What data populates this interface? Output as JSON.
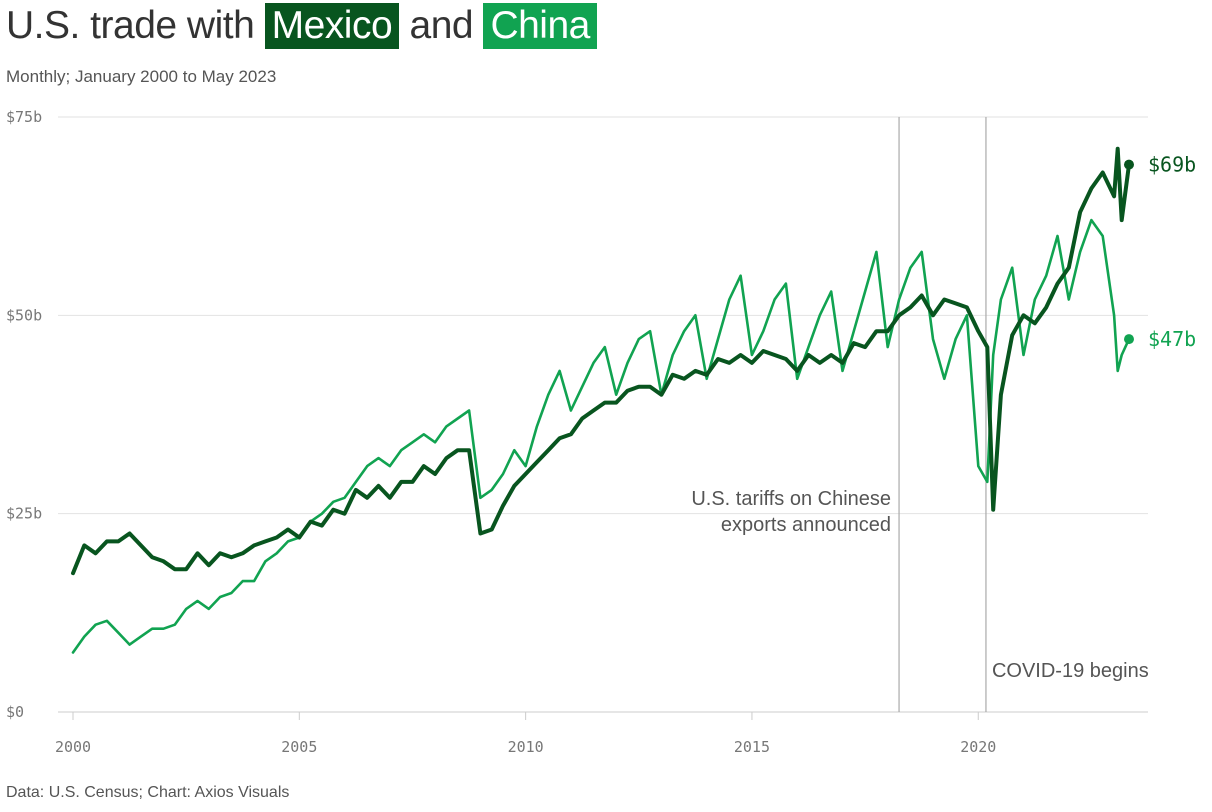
{
  "header": {
    "title_prefix": "U.S. trade with",
    "title_mexico": "Mexico",
    "title_and": "and",
    "title_china": "China",
    "subtitle": "Monthly; January 2000 to May 2023"
  },
  "footer": {
    "source": "Data: U.S. Census; Chart: Axios Visuals"
  },
  "colors": {
    "mexico": "#08551f",
    "china": "#11a351",
    "grid": "#e2e2e2",
    "marker": "#aaaaaa"
  },
  "chart_data": {
    "type": "line",
    "title": "U.S. trade with Mexico and China",
    "subtitle": "Monthly; January 2000 to May 2023",
    "xlabel": "",
    "ylabel": "",
    "xlim": [
      2000,
      2023.75
    ],
    "ylim": [
      0,
      75
    ],
    "x_ticks": [
      2000,
      2005,
      2010,
      2015,
      2020
    ],
    "x_tick_labels": [
      "2000",
      "2005",
      "2010",
      "2015",
      "2020"
    ],
    "y_ticks": [
      0,
      25,
      50,
      75
    ],
    "y_tick_labels": [
      "$0",
      "$25b",
      "$50b",
      "$75b"
    ],
    "grid": true,
    "series": [
      {
        "name": "Mexico",
        "end_label": "$69b",
        "points": [
          [
            2000.0,
            17.5
          ],
          [
            2000.25,
            21
          ],
          [
            2000.5,
            20
          ],
          [
            2000.75,
            21.5
          ],
          [
            2001.0,
            21.5
          ],
          [
            2001.25,
            22.5
          ],
          [
            2001.5,
            21
          ],
          [
            2001.75,
            19.5
          ],
          [
            2002.0,
            19
          ],
          [
            2002.25,
            18
          ],
          [
            2002.5,
            18
          ],
          [
            2002.75,
            20
          ],
          [
            2003.0,
            18.5
          ],
          [
            2003.25,
            20
          ],
          [
            2003.5,
            19.5
          ],
          [
            2003.75,
            20
          ],
          [
            2004.0,
            21
          ],
          [
            2004.25,
            21.5
          ],
          [
            2004.5,
            22
          ],
          [
            2004.75,
            23
          ],
          [
            2005.0,
            22
          ],
          [
            2005.25,
            24
          ],
          [
            2005.5,
            23.5
          ],
          [
            2005.75,
            25.5
          ],
          [
            2006.0,
            25
          ],
          [
            2006.25,
            28
          ],
          [
            2006.5,
            27
          ],
          [
            2006.75,
            28.5
          ],
          [
            2007.0,
            27
          ],
          [
            2007.25,
            29
          ],
          [
            2007.5,
            29
          ],
          [
            2007.75,
            31
          ],
          [
            2008.0,
            30
          ],
          [
            2008.25,
            32
          ],
          [
            2008.5,
            33
          ],
          [
            2008.75,
            33
          ],
          [
            2009.0,
            22.5
          ],
          [
            2009.25,
            23
          ],
          [
            2009.5,
            26
          ],
          [
            2009.75,
            28.5
          ],
          [
            2010.0,
            30
          ],
          [
            2010.25,
            31.5
          ],
          [
            2010.5,
            33
          ],
          [
            2010.75,
            34.5
          ],
          [
            2011.0,
            35
          ],
          [
            2011.25,
            37
          ],
          [
            2011.5,
            38
          ],
          [
            2011.75,
            39
          ],
          [
            2012.0,
            39
          ],
          [
            2012.25,
            40.5
          ],
          [
            2012.5,
            41
          ],
          [
            2012.75,
            41
          ],
          [
            2013.0,
            40
          ],
          [
            2013.25,
            42.5
          ],
          [
            2013.5,
            42
          ],
          [
            2013.75,
            43
          ],
          [
            2014.0,
            42.5
          ],
          [
            2014.25,
            44.5
          ],
          [
            2014.5,
            44
          ],
          [
            2014.75,
            45
          ],
          [
            2015.0,
            44
          ],
          [
            2015.25,
            45.5
          ],
          [
            2015.5,
            45
          ],
          [
            2015.75,
            44.5
          ],
          [
            2016.0,
            43
          ],
          [
            2016.25,
            45
          ],
          [
            2016.5,
            44
          ],
          [
            2016.75,
            45
          ],
          [
            2017.0,
            44
          ],
          [
            2017.25,
            46.5
          ],
          [
            2017.5,
            46
          ],
          [
            2017.75,
            48
          ],
          [
            2018.0,
            48
          ],
          [
            2018.25,
            50
          ],
          [
            2018.5,
            51
          ],
          [
            2018.75,
            52.5
          ],
          [
            2019.0,
            50
          ],
          [
            2019.25,
            52
          ],
          [
            2019.5,
            51.5
          ],
          [
            2019.75,
            51
          ],
          [
            2020.0,
            48
          ],
          [
            2020.2,
            46
          ],
          [
            2020.33,
            25.5
          ],
          [
            2020.5,
            40
          ],
          [
            2020.75,
            47.5
          ],
          [
            2021.0,
            50
          ],
          [
            2021.25,
            49
          ],
          [
            2021.5,
            51
          ],
          [
            2021.75,
            54
          ],
          [
            2022.0,
            56
          ],
          [
            2022.25,
            63
          ],
          [
            2022.5,
            66
          ],
          [
            2022.75,
            68
          ],
          [
            2023.0,
            65
          ],
          [
            2023.08,
            71
          ],
          [
            2023.17,
            62
          ],
          [
            2023.33,
            69
          ]
        ]
      },
      {
        "name": "China",
        "end_label": "$47b",
        "points": [
          [
            2000.0,
            7.5
          ],
          [
            2000.25,
            9.5
          ],
          [
            2000.5,
            11
          ],
          [
            2000.75,
            11.5
          ],
          [
            2001.0,
            10
          ],
          [
            2001.25,
            8.5
          ],
          [
            2001.5,
            9.5
          ],
          [
            2001.75,
            10.5
          ],
          [
            2002.0,
            10.5
          ],
          [
            2002.25,
            11
          ],
          [
            2002.5,
            13
          ],
          [
            2002.75,
            14
          ],
          [
            2003.0,
            13
          ],
          [
            2003.25,
            14.5
          ],
          [
            2003.5,
            15
          ],
          [
            2003.75,
            16.5
          ],
          [
            2004.0,
            16.5
          ],
          [
            2004.25,
            19
          ],
          [
            2004.5,
            20
          ],
          [
            2004.75,
            21.5
          ],
          [
            2005.0,
            22
          ],
          [
            2005.25,
            24
          ],
          [
            2005.5,
            25
          ],
          [
            2005.75,
            26.5
          ],
          [
            2006.0,
            27
          ],
          [
            2006.25,
            29
          ],
          [
            2006.5,
            31
          ],
          [
            2006.75,
            32
          ],
          [
            2007.0,
            31
          ],
          [
            2007.25,
            33
          ],
          [
            2007.5,
            34
          ],
          [
            2007.75,
            35
          ],
          [
            2008.0,
            34
          ],
          [
            2008.25,
            36
          ],
          [
            2008.5,
            37
          ],
          [
            2008.75,
            38
          ],
          [
            2009.0,
            27
          ],
          [
            2009.25,
            28
          ],
          [
            2009.5,
            30
          ],
          [
            2009.75,
            33
          ],
          [
            2010.0,
            31
          ],
          [
            2010.25,
            36
          ],
          [
            2010.5,
            40
          ],
          [
            2010.75,
            43
          ],
          [
            2011.0,
            38
          ],
          [
            2011.25,
            41
          ],
          [
            2011.5,
            44
          ],
          [
            2011.75,
            46
          ],
          [
            2012.0,
            40
          ],
          [
            2012.25,
            44
          ],
          [
            2012.5,
            47
          ],
          [
            2012.75,
            48
          ],
          [
            2013.0,
            40
          ],
          [
            2013.25,
            45
          ],
          [
            2013.5,
            48
          ],
          [
            2013.75,
            50
          ],
          [
            2014.0,
            42
          ],
          [
            2014.25,
            47
          ],
          [
            2014.5,
            52
          ],
          [
            2014.75,
            55
          ],
          [
            2015.0,
            45
          ],
          [
            2015.25,
            48
          ],
          [
            2015.5,
            52
          ],
          [
            2015.75,
            54
          ],
          [
            2016.0,
            42
          ],
          [
            2016.25,
            46
          ],
          [
            2016.5,
            50
          ],
          [
            2016.75,
            53
          ],
          [
            2017.0,
            43
          ],
          [
            2017.25,
            48
          ],
          [
            2017.5,
            53
          ],
          [
            2017.75,
            58
          ],
          [
            2018.0,
            46
          ],
          [
            2018.25,
            52
          ],
          [
            2018.5,
            56
          ],
          [
            2018.75,
            58
          ],
          [
            2019.0,
            47
          ],
          [
            2019.25,
            42
          ],
          [
            2019.5,
            47
          ],
          [
            2019.75,
            50
          ],
          [
            2020.0,
            31
          ],
          [
            2020.2,
            29
          ],
          [
            2020.33,
            45
          ],
          [
            2020.5,
            52
          ],
          [
            2020.75,
            56
          ],
          [
            2021.0,
            45
          ],
          [
            2021.25,
            52
          ],
          [
            2021.5,
            55
          ],
          [
            2021.75,
            60
          ],
          [
            2022.0,
            52
          ],
          [
            2022.25,
            58
          ],
          [
            2022.5,
            62
          ],
          [
            2022.75,
            60
          ],
          [
            2023.0,
            50
          ],
          [
            2023.08,
            43
          ],
          [
            2023.17,
            45
          ],
          [
            2023.33,
            47
          ]
        ]
      }
    ],
    "annotations": [
      {
        "x": 2018.25,
        "lines": [
          "U.S. tariffs on Chinese",
          "exports announced"
        ],
        "align": "end"
      },
      {
        "x": 2020.17,
        "lines": [
          "COVID-19 begins"
        ],
        "align": "start"
      }
    ]
  }
}
